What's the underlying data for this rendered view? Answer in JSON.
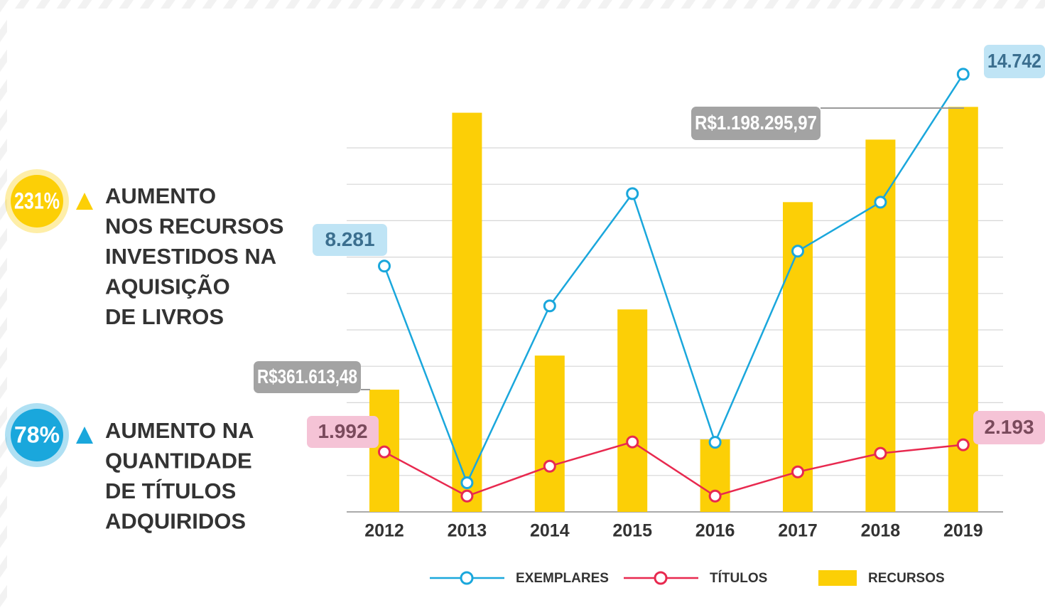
{
  "chart_data": {
    "type": "bar-line",
    "categories": [
      "2012",
      "2013",
      "2014",
      "2015",
      "2016",
      "2017",
      "2018",
      "2019"
    ],
    "series": [
      {
        "name": "RECURSOS",
        "type": "bar",
        "color": "#fccf06",
        "values": [
          361613.48,
          1181000,
          462500,
          599000,
          214400,
          916500,
          1101500,
          1198295.97
        ],
        "value_labels": [
          "R$361.613,48",
          null,
          null,
          null,
          null,
          null,
          null,
          "R$1.198.295,97"
        ],
        "ylim": [
          0,
          1300000
        ]
      },
      {
        "name": "EXEMPLARES",
        "type": "line",
        "color": "#1aa7dc",
        "values": [
          8281,
          981,
          6940,
          10720,
          2345,
          8782,
          10433,
          14742
        ],
        "value_labels": [
          "8.281",
          null,
          null,
          null,
          null,
          null,
          null,
          "14.742"
        ],
        "ylim": [
          0,
          14800
        ]
      },
      {
        "name": "TÍTULOS",
        "type": "line",
        "color": "#e8294f",
        "values": [
          1992,
          746,
          1590,
          2273,
          746,
          1429,
          1952,
          2193
        ],
        "value_labels": [
          "1.992",
          null,
          null,
          null,
          null,
          null,
          null,
          "2.193"
        ],
        "ylim": [
          300,
          12700
        ]
      }
    ],
    "annotations": [
      {
        "label": "231%",
        "color": "#fccf06",
        "lines": [
          "AUMENTO",
          "NOS RECURSOS",
          "INVESTIDOS NA",
          "AQUISIÇÃO",
          "DE LIVROS"
        ]
      },
      {
        "label": "78%",
        "color": "#1aa7dc",
        "lines": [
          "AUMENTO NA",
          "QUANTIDADE",
          "DE TÍTULOS",
          "ADQUIRIDOS"
        ]
      }
    ]
  }
}
